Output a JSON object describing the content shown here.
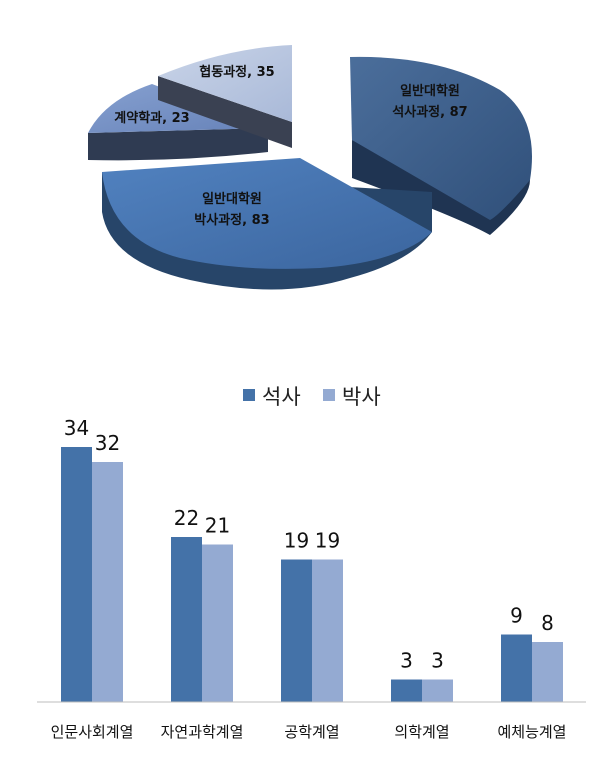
{
  "chart_data": [
    {
      "type": "pie",
      "title": "",
      "slices": [
        {
          "lines": [
            "일반대학원",
            "석사과정, 87"
          ],
          "value": 87,
          "color": "#3e5f8a"
        },
        {
          "lines": [
            "일반대학원",
            "박사과정, 83"
          ],
          "value": 83,
          "color": "#4874b0"
        },
        {
          "lines": [
            "계약학과, 23"
          ],
          "value": 23,
          "color": "#7691c4"
        },
        {
          "lines": [
            "협동과정, 35"
          ],
          "value": 35,
          "color": "#b7c5df"
        }
      ]
    },
    {
      "type": "bar",
      "title": "",
      "categories": [
        "인문사회계열",
        "자연과학계열",
        "공학계열",
        "의학계열",
        "예체능계열"
      ],
      "series": [
        {
          "name": "석사",
          "values": [
            34,
            22,
            19,
            3,
            9
          ],
          "color": "#4472a8"
        },
        {
          "name": "박사",
          "values": [
            32,
            21,
            19,
            3,
            8
          ],
          "color": "#94aad2"
        }
      ],
      "ylim": [
        0,
        36
      ],
      "legend": "top",
      "grid": false
    }
  ]
}
